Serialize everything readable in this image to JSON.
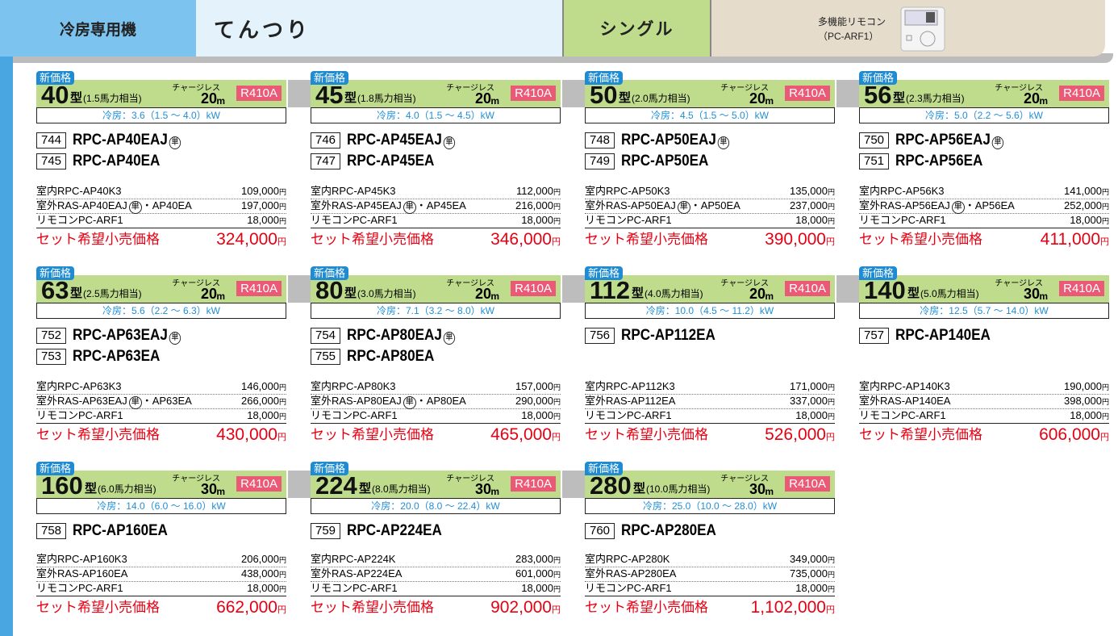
{
  "header": {
    "category": "冷房専用機",
    "type": "てんつり",
    "system": "シングル",
    "remote_label": "多機能リモコン",
    "remote_model": "（PC-ARF1）"
  },
  "labels": {
    "badge": "新価格",
    "unit": "型",
    "chargeless": "チャージレス",
    "length_unit": "m",
    "refrigerant": "R410A",
    "yen": "円",
    "set_price": "セット希望小売価格"
  },
  "cards": [
    {
      "size": "40",
      "hp": "(1.5馬力相当)",
      "length": "20",
      "cooling": "冷房：3.6（1.5 ～ 4.0）kW",
      "models": [
        {
          "code": "744",
          "name": "RPC-AP40EAJ",
          "mark": "単"
        },
        {
          "code": "745",
          "name": "RPC-AP40EA"
        }
      ],
      "items": [
        {
          "label": "室内RPC-AP40K3",
          "price": "109,000"
        },
        {
          "label": "室外RAS-AP40EAJ",
          "mark": "単",
          "suffix": "・AP40EA",
          "price": "197,000"
        },
        {
          "label": "リモコンPC-ARF1",
          "price": "18,000"
        }
      ],
      "total": "324,000"
    },
    {
      "size": "45",
      "hp": "(1.8馬力相当)",
      "length": "20",
      "cooling": "冷房：4.0（1.5 ～ 4.5）kW",
      "models": [
        {
          "code": "746",
          "name": "RPC-AP45EAJ",
          "mark": "単"
        },
        {
          "code": "747",
          "name": "RPC-AP45EA"
        }
      ],
      "items": [
        {
          "label": "室内RPC-AP45K3",
          "price": "112,000"
        },
        {
          "label": "室外RAS-AP45EAJ",
          "mark": "単",
          "suffix": "・AP45EA",
          "price": "216,000"
        },
        {
          "label": "リモコンPC-ARF1",
          "price": "18,000"
        }
      ],
      "total": "346,000"
    },
    {
      "size": "50",
      "hp": "(2.0馬力相当)",
      "length": "20",
      "cooling": "冷房：4.5（1.5 ～ 5.0）kW",
      "models": [
        {
          "code": "748",
          "name": "RPC-AP50EAJ",
          "mark": "単"
        },
        {
          "code": "749",
          "name": "RPC-AP50EA"
        }
      ],
      "items": [
        {
          "label": "室内RPC-AP50K3",
          "price": "135,000"
        },
        {
          "label": "室外RAS-AP50EAJ",
          "mark": "単",
          "suffix": "・AP50EA",
          "price": "237,000"
        },
        {
          "label": "リモコンPC-ARF1",
          "price": "18,000"
        }
      ],
      "total": "390,000"
    },
    {
      "size": "56",
      "hp": "(2.3馬力相当)",
      "length": "20",
      "cooling": "冷房：5.0（2.2 ～ 5.6）kW",
      "models": [
        {
          "code": "750",
          "name": "RPC-AP56EAJ",
          "mark": "単"
        },
        {
          "code": "751",
          "name": "RPC-AP56EA"
        }
      ],
      "items": [
        {
          "label": "室内RPC-AP56K3",
          "price": "141,000"
        },
        {
          "label": "室外RAS-AP56EAJ",
          "mark": "単",
          "suffix": "・AP56EA",
          "price": "252,000"
        },
        {
          "label": "リモコンPC-ARF1",
          "price": "18,000"
        }
      ],
      "total": "411,000"
    },
    {
      "size": "63",
      "hp": "(2.5馬力相当)",
      "length": "20",
      "cooling": "冷房：5.6（2.2 ～ 6.3）kW",
      "models": [
        {
          "code": "752",
          "name": "RPC-AP63EAJ",
          "mark": "単"
        },
        {
          "code": "753",
          "name": "RPC-AP63EA"
        }
      ],
      "items": [
        {
          "label": "室内RPC-AP63K3",
          "price": "146,000"
        },
        {
          "label": "室外RAS-AP63EAJ",
          "mark": "単",
          "suffix": "・AP63EA",
          "price": "266,000"
        },
        {
          "label": "リモコンPC-ARF1",
          "price": "18,000"
        }
      ],
      "total": "430,000"
    },
    {
      "size": "80",
      "hp": "(3.0馬力相当)",
      "length": "20",
      "cooling": "冷房：7.1（3.2 ～ 8.0）kW",
      "models": [
        {
          "code": "754",
          "name": "RPC-AP80EAJ",
          "mark": "単"
        },
        {
          "code": "755",
          "name": "RPC-AP80EA"
        }
      ],
      "items": [
        {
          "label": "室内RPC-AP80K3",
          "price": "157,000"
        },
        {
          "label": "室外RAS-AP80EAJ",
          "mark": "単",
          "suffix": "・AP80EA",
          "price": "290,000"
        },
        {
          "label": "リモコンPC-ARF1",
          "price": "18,000"
        }
      ],
      "total": "465,000"
    },
    {
      "size": "112",
      "hp": "(4.0馬力相当)",
      "length": "20",
      "cooling": "冷房：10.0（4.5 ～ 11.2）kW",
      "models": [
        {
          "code": "756",
          "name": "RPC-AP112EA"
        }
      ],
      "items": [
        {
          "label": "室内RPC-AP112K3",
          "price": "171,000"
        },
        {
          "label": "室外RAS-AP112EA",
          "price": "337,000"
        },
        {
          "label": "リモコンPC-ARF1",
          "price": "18,000"
        }
      ],
      "total": "526,000"
    },
    {
      "size": "140",
      "hp": "(5.0馬力相当)",
      "length": "30",
      "cooling": "冷房：12.5（5.7 ～ 14.0）kW",
      "models": [
        {
          "code": "757",
          "name": "RPC-AP140EA"
        }
      ],
      "items": [
        {
          "label": "室内RPC-AP140K3",
          "price": "190,000"
        },
        {
          "label": "室外RAS-AP140EA",
          "price": "398,000"
        },
        {
          "label": "リモコンPC-ARF1",
          "price": "18,000"
        }
      ],
      "total": "606,000"
    },
    {
      "size": "160",
      "hp": "(6.0馬力相当)",
      "length": "30",
      "cooling": "冷房：14.0（6.0 ～ 16.0）kW",
      "models": [
        {
          "code": "758",
          "name": "RPC-AP160EA"
        }
      ],
      "items": [
        {
          "label": "室内RPC-AP160K3",
          "price": "206,000"
        },
        {
          "label": "室外RAS-AP160EA",
          "price": "438,000"
        },
        {
          "label": "リモコンPC-ARF1",
          "price": "18,000"
        }
      ],
      "total": "662,000"
    },
    {
      "size": "224",
      "hp": "(8.0馬力相当)",
      "length": "30",
      "cooling": "冷房：20.0（8.0 ～ 22.4）kW",
      "models": [
        {
          "code": "759",
          "name": "RPC-AP224EA"
        }
      ],
      "items": [
        {
          "label": "室内RPC-AP224K",
          "price": "283,000"
        },
        {
          "label": "室外RAS-AP224EA",
          "price": "601,000"
        },
        {
          "label": "リモコンPC-ARF1",
          "price": "18,000"
        }
      ],
      "total": "902,000"
    },
    {
      "size": "280",
      "hp": "(10.0馬力相当)",
      "length": "30",
      "cooling": "冷房：25.0（10.0 ～ 28.0）kW",
      "models": [
        {
          "code": "760",
          "name": "RPC-AP280EA"
        }
      ],
      "items": [
        {
          "label": "室内RPC-AP280K",
          "price": "349,000"
        },
        {
          "label": "室外RAS-AP280EA",
          "price": "735,000"
        },
        {
          "label": "リモコンPC-ARF1",
          "price": "18,000"
        }
      ],
      "total": "1,102,000"
    }
  ]
}
